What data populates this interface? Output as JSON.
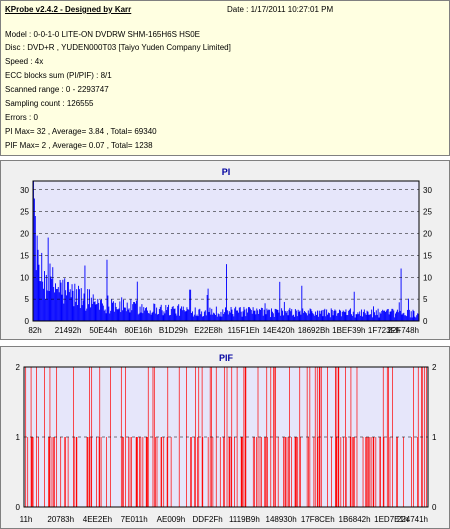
{
  "header": {
    "title": "KProbe v2.4.2 - Designed by Karr",
    "date": "Date : 1/17/2011 10:27:01 PM"
  },
  "info_lines": [
    "Model : 0-0-1-0 LITE-ON DVDRW SHM-165H6S HS0E",
    "Disc : DVD+R , YUDEN000T03 [Taiyo Yuden Company Limited]",
    "Speed : 4x",
    "ECC blocks sum (PI/PIF) : 8/1",
    "Scanned range : 0 - 2293747",
    "Sampling count : 126555",
    "Errors : 0",
    "PI Max= 32 , Average= 3.84 , Total= 69340",
    "PIF Max= 2 , Average= 0.07 , Total= 1238"
  ],
  "chart_data": [
    {
      "type": "bar",
      "title": "PI",
      "color": "#0000ff",
      "ylim": [
        0,
        32
      ],
      "yticks": [
        0,
        5,
        10,
        15,
        20,
        25,
        30
      ],
      "xtick_labels": [
        "82h",
        "21492h",
        "50E44h",
        "80E16h",
        "B1D29h",
        "E22E8h",
        "115F1Eh",
        "14E420h",
        "18692Bh",
        "1BEF39h",
        "1F723Fh",
        "22F748h"
      ],
      "grid": true,
      "max": 32,
      "average": 3.84,
      "total": 69340
    },
    {
      "type": "bar",
      "title": "PIF",
      "color": "#ff0000",
      "ylim": [
        0,
        2
      ],
      "yticks": [
        0,
        1,
        2
      ],
      "xtick_labels": [
        "11h",
        "20783h",
        "4EE2Eh",
        "7E011h",
        "AE009h",
        "DDF2Fh",
        "1119B9h",
        "148930h",
        "17F8CEh",
        "1B6842h",
        "1ED7E1h",
        "224741h"
      ],
      "grid": true,
      "max": 2,
      "average": 0.07,
      "total": 1238
    }
  ]
}
